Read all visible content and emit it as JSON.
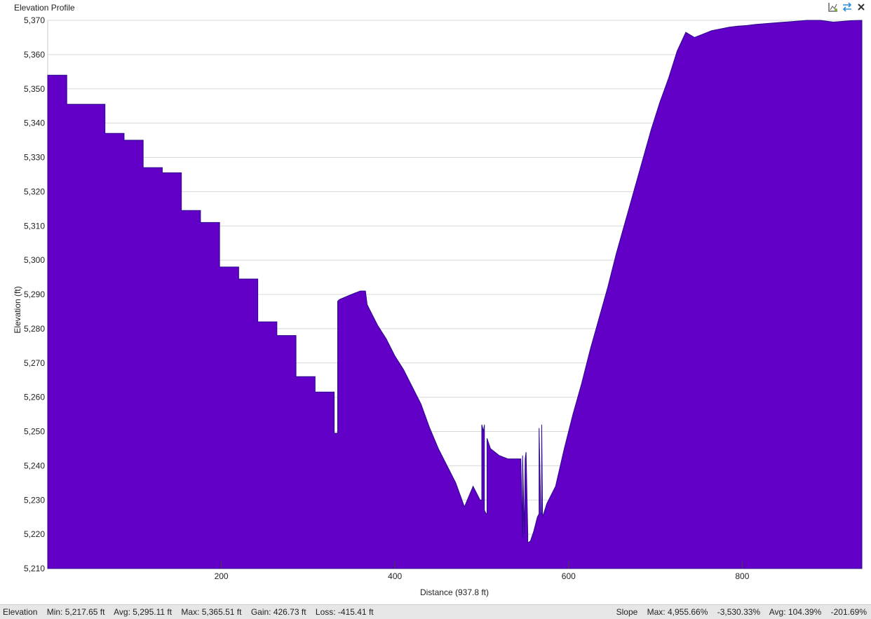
{
  "window": {
    "title": "Elevation Profile"
  },
  "toolbar": {
    "icons": [
      "chart-settings-icon",
      "swap-direction-icon",
      "close-icon"
    ]
  },
  "colors": {
    "fill": "#6200c8",
    "line": "#2a0a8c",
    "grid": "#d8d8d8",
    "plot_bg": "#ffffff"
  },
  "chart_data": {
    "type": "area",
    "xlabel": "Distance (937.8 ft)",
    "ylabel": "Elevation (ft)",
    "xlim": [
      0,
      937.8
    ],
    "ylim": [
      5210,
      5370
    ],
    "yticks": [
      5210,
      5220,
      5230,
      5240,
      5250,
      5260,
      5270,
      5280,
      5290,
      5300,
      5310,
      5320,
      5330,
      5340,
      5350,
      5360,
      5370
    ],
    "ytick_labels": [
      "5,210",
      "5,220",
      "5,230",
      "5,240",
      "5,250",
      "5,260",
      "5,270",
      "5,280",
      "5,290",
      "5,300",
      "5,310",
      "5,320",
      "5,330",
      "5,340",
      "5,350",
      "5,360",
      "5,370"
    ],
    "xticks": [
      200,
      400,
      600,
      800
    ],
    "xtick_labels": [
      "200",
      "400",
      "600",
      "800"
    ],
    "grid": true,
    "series": [
      {
        "x": [
          0,
          22,
          22,
          66,
          66,
          88,
          88,
          110,
          110,
          132,
          132,
          154,
          154,
          176,
          176,
          198,
          198,
          220,
          220,
          242,
          242,
          264,
          264,
          286,
          286,
          308,
          308,
          330,
          330,
          332,
          334,
          334,
          336,
          350,
          360,
          366,
          368,
          372,
          380,
          390,
          400,
          410,
          420,
          430,
          440,
          450,
          460,
          470,
          480,
          490,
          498,
          500,
          500,
          502,
          503,
          503,
          505,
          506,
          506,
          510,
          520,
          530,
          545,
          547,
          547,
          549,
          550,
          551,
          553,
          553,
          556,
          560,
          564,
          566,
          566,
          568,
          569,
          569,
          570,
          575,
          585,
          595,
          605,
          615,
          625,
          635,
          645,
          655,
          665,
          675,
          685,
          695,
          705,
          715,
          725,
          735,
          745,
          755,
          765,
          775,
          785,
          795,
          805,
          815,
          825,
          835,
          845,
          855,
          865,
          875,
          885,
          890,
          905,
          915,
          925,
          937.8
        ],
        "y": [
          5354,
          5354,
          5345.5,
          5345.5,
          5337,
          5337,
          5335,
          5335,
          5327,
          5327,
          5325.5,
          5325.5,
          5314.5,
          5314.5,
          5311,
          5311,
          5298,
          5298,
          5294.5,
          5294.5,
          5282,
          5282,
          5278,
          5278,
          5266,
          5266,
          5261.5,
          5261.5,
          5249.5,
          5249.5,
          5249.5,
          5288,
          5288.5,
          5290,
          5291,
          5291,
          5287,
          5285,
          5281,
          5277,
          5272,
          5268,
          5263,
          5258,
          5251,
          5245,
          5240,
          5235,
          5228,
          5234,
          5230,
          5230,
          5252,
          5250,
          5252,
          5227,
          5226,
          5226,
          5248,
          5245,
          5243,
          5242,
          5242,
          5219,
          5243,
          5220,
          5242,
          5244,
          5220,
          5217.5,
          5218,
          5221,
          5225,
          5226,
          5251,
          5226,
          5226,
          5252,
          5225,
          5229,
          5234,
          5245,
          5255,
          5264,
          5274,
          5283,
          5292,
          5302,
          5311,
          5320,
          5329,
          5338,
          5346,
          5353,
          5361,
          5366.5,
          5365,
          5366,
          5367,
          5367.5,
          5368,
          5368.3,
          5368.5,
          5368.8,
          5369,
          5369.2,
          5369.4,
          5369.6,
          5369.8,
          5370,
          5370,
          5370,
          5369.5,
          5369.7,
          5369.9,
          5370
        ]
      }
    ]
  },
  "status": {
    "elevation_label": "Elevation",
    "min": "Min: 5,217.65 ft",
    "avg": "Avg: 5,295.11 ft",
    "max": "Max: 5,365.51 ft",
    "gain": "Gain: 426.73 ft",
    "loss": "Loss: -415.41 ft",
    "slope_label": "Slope",
    "slope_max": "Max: 4,955.66%",
    "slope_min": "-3,530.33%",
    "slope_avg": "Avg: 104.39%",
    "slope_avg_neg": "-201.69%"
  }
}
